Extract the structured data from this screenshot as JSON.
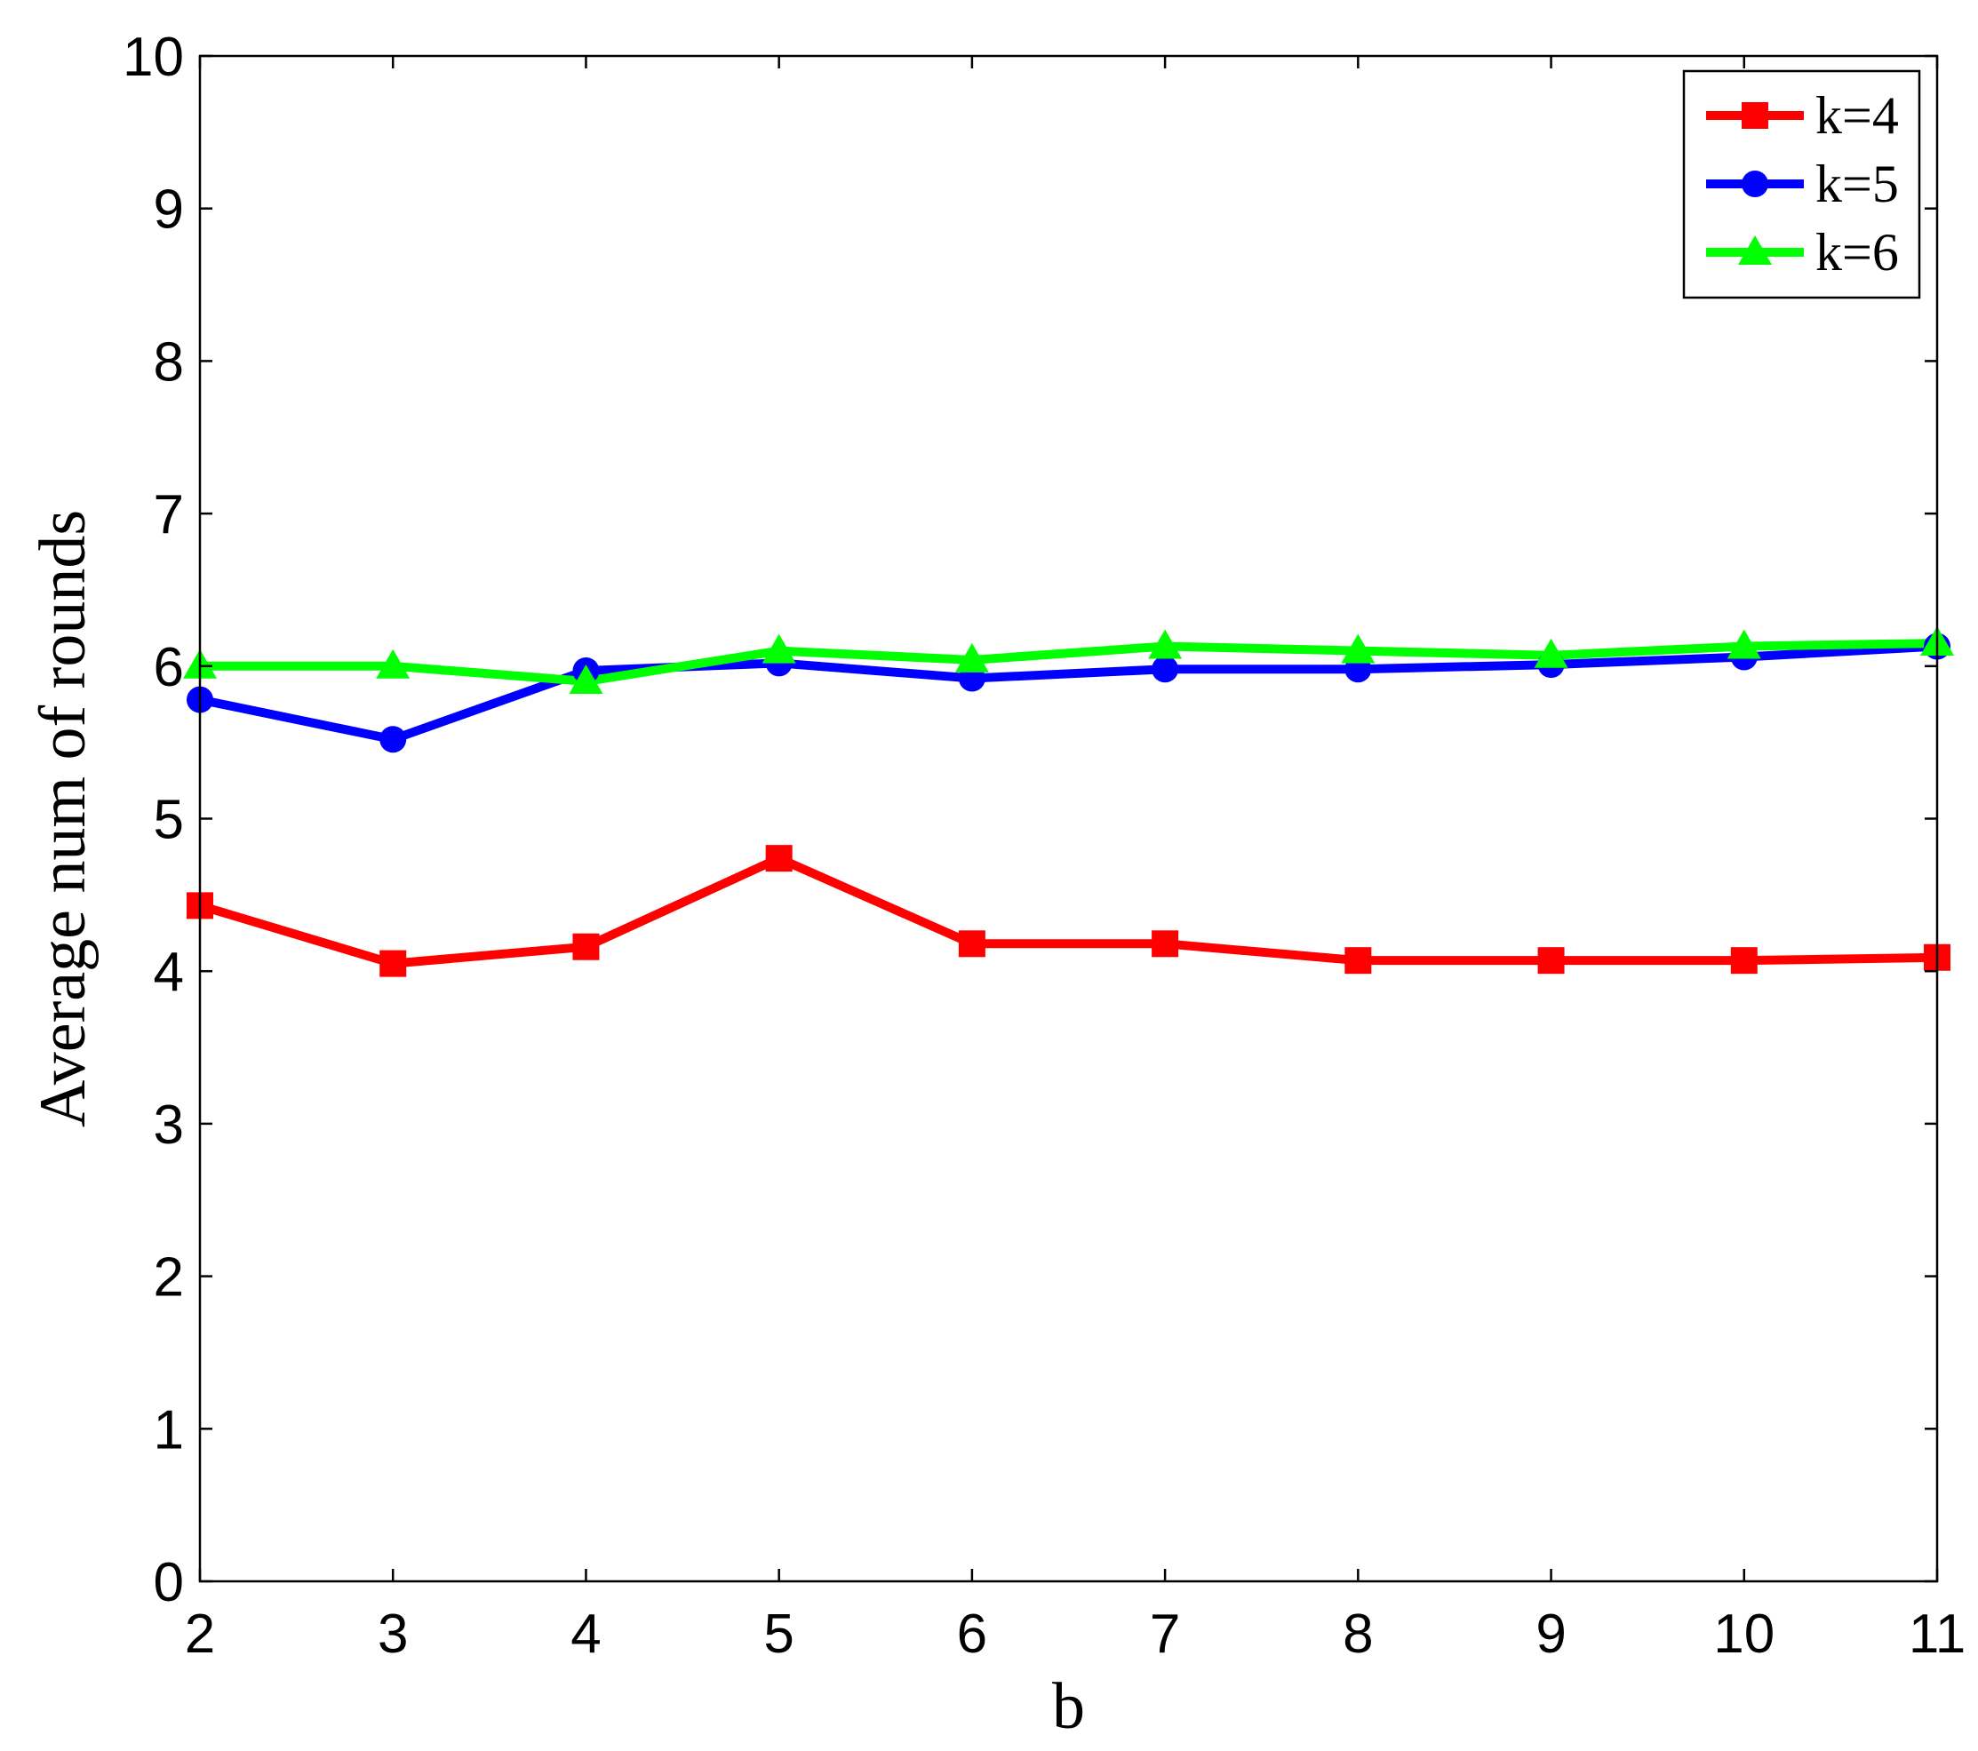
{
  "chart_data": {
    "type": "line",
    "title": "",
    "xlabel": "b",
    "ylabel": "Average num of rounds",
    "x": [
      2,
      3,
      4,
      5,
      6,
      7,
      8,
      9,
      10,
      11
    ],
    "xlim": [
      2,
      11
    ],
    "ylim": [
      0,
      10
    ],
    "xticks": [
      2,
      3,
      4,
      5,
      6,
      7,
      8,
      9,
      10,
      11
    ],
    "yticks": [
      0,
      1,
      2,
      3,
      4,
      5,
      6,
      7,
      8,
      9,
      10
    ],
    "grid": false,
    "legend_position": "top-right",
    "series": [
      {
        "name": "k=4",
        "color": "#ff0000",
        "marker": "square",
        "values": [
          4.43,
          4.05,
          4.16,
          4.74,
          4.18,
          4.18,
          4.07,
          4.07,
          4.07,
          4.09
        ]
      },
      {
        "name": "k=5",
        "color": "#0000ff",
        "marker": "circle",
        "values": [
          5.78,
          5.52,
          5.97,
          6.02,
          5.92,
          5.98,
          5.98,
          6.01,
          6.06,
          6.13
        ]
      },
      {
        "name": "k=6",
        "color": "#00ff00",
        "marker": "triangle",
        "values": [
          6.0,
          6.0,
          5.9,
          6.1,
          6.04,
          6.13,
          6.1,
          6.07,
          6.13,
          6.15
        ]
      }
    ]
  }
}
